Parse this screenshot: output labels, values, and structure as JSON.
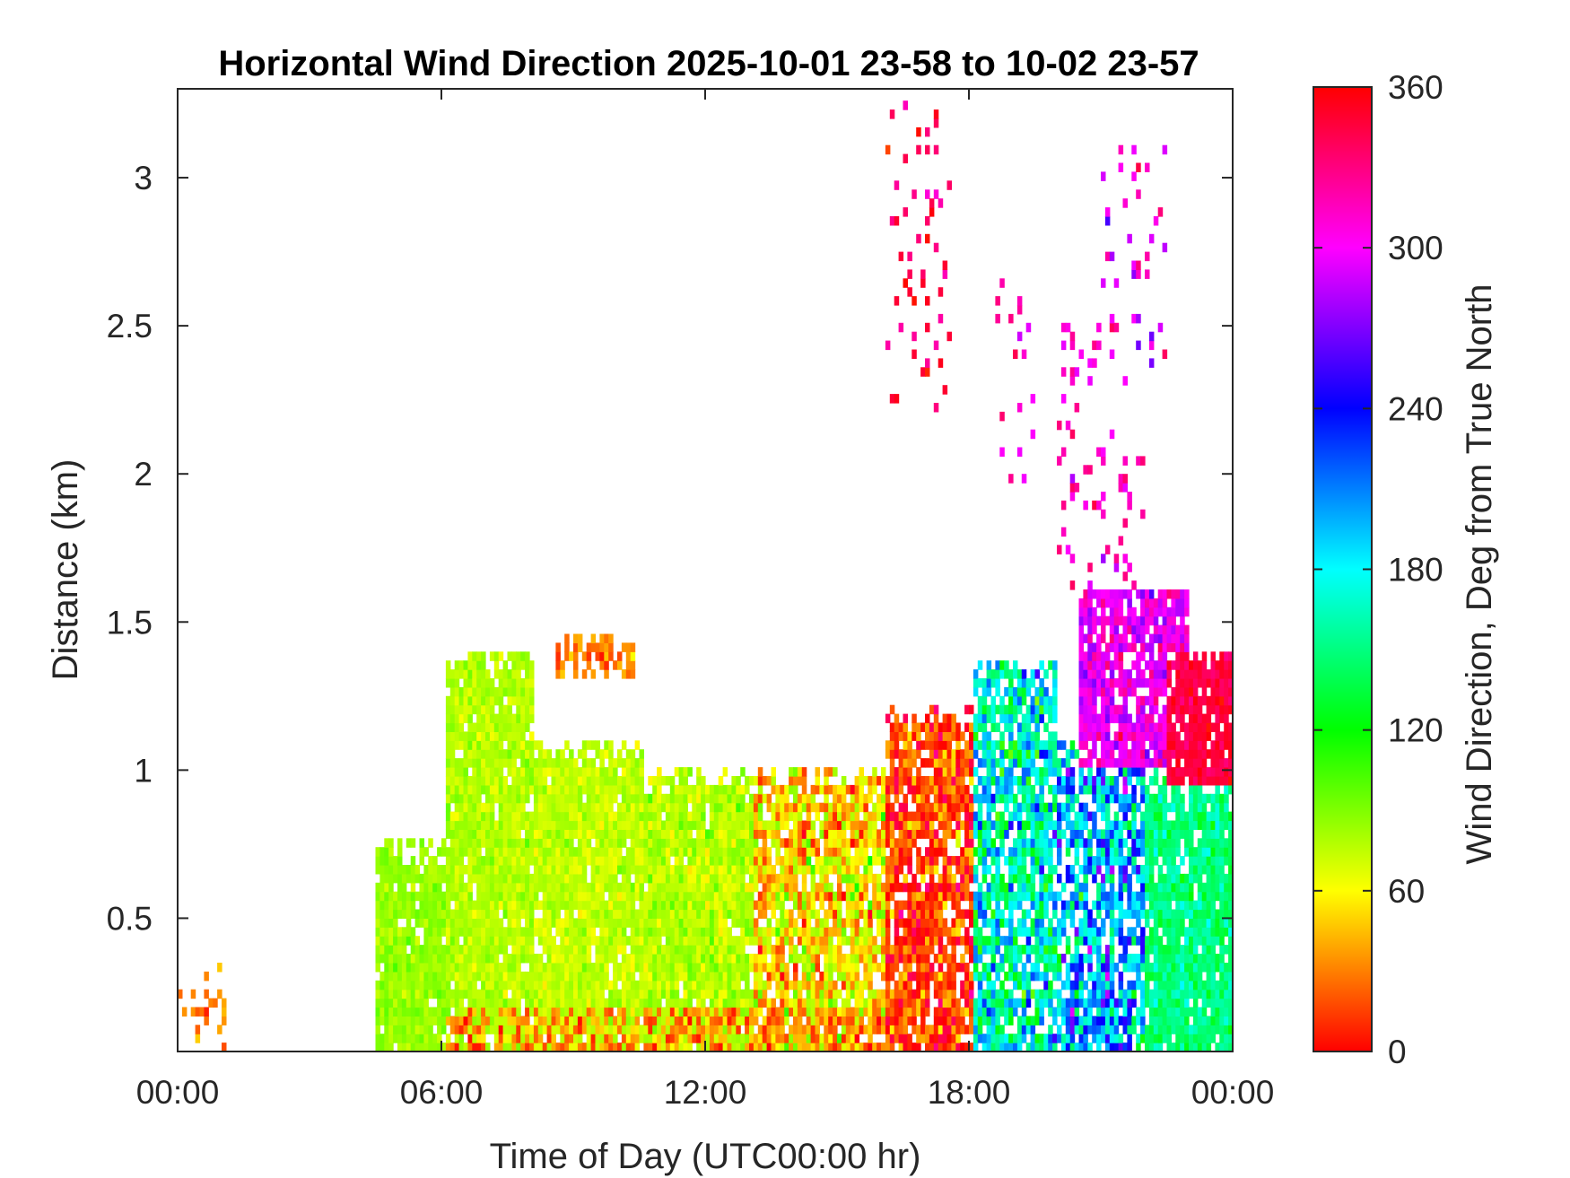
{
  "chart_data": {
    "type": "heatmap",
    "title": "Horizontal Wind Direction 2025-10-01 23-58 to 10-02 23-57",
    "xlabel": "Time of Day (UTC00:00 hr)",
    "ylabel": "Distance (km)",
    "xlim": [
      0,
      24
    ],
    "ylim": [
      0.05,
      3.3
    ],
    "x_ticks": [
      0,
      6,
      12,
      18,
      24
    ],
    "x_tick_labels": [
      "00:00",
      "06:00",
      "12:00",
      "18:00",
      "00:00"
    ],
    "y_ticks": [
      0.5,
      1,
      1.5,
      2,
      2.5,
      3
    ],
    "y_tick_labels": [
      "0.5",
      "1",
      "1.5",
      "2",
      "2.5",
      "3"
    ],
    "colorbar": {
      "label": "Wind Direction, Deg from True North",
      "range": [
        0,
        360
      ],
      "ticks": [
        0,
        60,
        120,
        180,
        240,
        300,
        360
      ],
      "tick_labels": [
        "0",
        "60",
        "120",
        "180",
        "240",
        "300",
        "360"
      ],
      "colormap": [
        "#ff0000",
        "#ffff00",
        "#00ff00",
        "#00ffff",
        "#0000ff",
        "#ff00ff",
        "#ff0000"
      ]
    },
    "regions": [
      {
        "t0": 0.0,
        "t1": 1.0,
        "top": 0.35,
        "dir": 30,
        "spread": 30,
        "density": 0.25
      },
      {
        "t0": 4.5,
        "t1": 6.0,
        "top": 0.75,
        "dir": 85,
        "spread": 12,
        "density": 0.95
      },
      {
        "t0": 6.0,
        "t1": 8.0,
        "top": 1.4,
        "dir": 78,
        "spread": 14,
        "density": 0.95
      },
      {
        "t0": 8.0,
        "t1": 10.5,
        "top": 1.1,
        "dir": 75,
        "spread": 14,
        "density": 0.95
      },
      {
        "t0": 8.5,
        "t1": 10.3,
        "top": 1.45,
        "bottom": 1.3,
        "dir": 30,
        "spread": 20,
        "density": 0.6
      },
      {
        "t0": 10.5,
        "t1": 13.0,
        "top": 1.0,
        "dir": 78,
        "spread": 18,
        "density": 0.95
      },
      {
        "t0": 13.0,
        "t1": 16.0,
        "top": 1.0,
        "dir": 55,
        "spread": 45,
        "density": 0.85
      },
      {
        "t0": 16.0,
        "t1": 18.0,
        "top": 1.2,
        "dir": 15,
        "spread": 40,
        "density": 0.85
      },
      {
        "t0": 18.0,
        "t1": 20.0,
        "top": 1.35,
        "dir": 170,
        "spread": 60,
        "density": 0.8
      },
      {
        "t0": 20.0,
        "t1": 22.0,
        "top": 1.1,
        "dir": 200,
        "spread": 70,
        "density": 0.75
      },
      {
        "t0": 20.5,
        "t1": 23.0,
        "top": 1.6,
        "bottom": 1.0,
        "dir": 300,
        "spread": 30,
        "density": 0.85
      },
      {
        "t0": 22.0,
        "t1": 24.0,
        "top": 1.0,
        "dir": 150,
        "spread": 25,
        "density": 0.9
      },
      {
        "t0": 22.5,
        "t1": 24.0,
        "top": 1.4,
        "bottom": 0.95,
        "dir": 345,
        "spread": 15,
        "density": 0.9
      },
      {
        "t0": 16.0,
        "t1": 17.5,
        "top": 3.25,
        "bottom": 2.2,
        "dir": 340,
        "spread": 25,
        "density": 0.12
      },
      {
        "t0": 18.5,
        "t1": 19.5,
        "top": 2.65,
        "bottom": 1.95,
        "dir": 310,
        "spread": 40,
        "density": 0.12
      },
      {
        "t0": 20.0,
        "t1": 22.0,
        "top": 2.5,
        "bottom": 1.6,
        "dir": 315,
        "spread": 30,
        "density": 0.12
      },
      {
        "t0": 21.0,
        "t1": 22.5,
        "top": 3.1,
        "bottom": 2.2,
        "dir": 300,
        "spread": 40,
        "density": 0.08
      }
    ],
    "surface_layer": {
      "top": 0.2,
      "dir": 30,
      "spread": 30
    }
  }
}
